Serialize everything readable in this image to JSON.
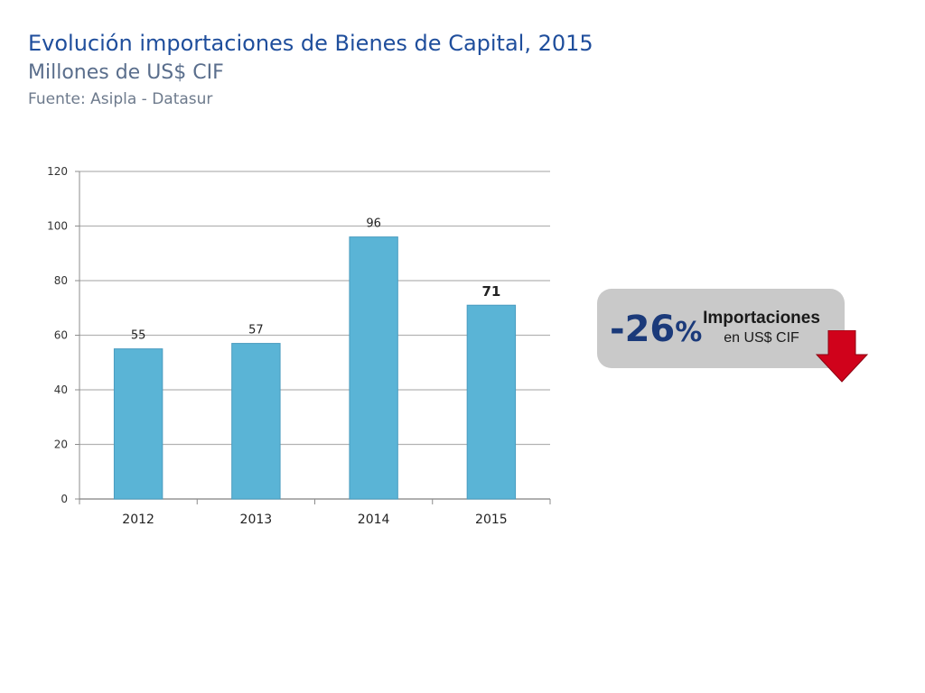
{
  "header": {
    "title": "Evolución importaciones de Bienes de Capital, 2015",
    "subtitle": "Millones de US$ CIF",
    "source": "Fuente: Asipla - Datasur"
  },
  "chart_data": {
    "type": "bar",
    "categories": [
      "2012",
      "2013",
      "2014",
      "2015"
    ],
    "values": [
      55,
      57,
      96,
      71
    ],
    "data_labels": [
      "55",
      "57",
      "96",
      "71"
    ],
    "ylim": [
      0,
      120
    ],
    "yticks": [
      0,
      20,
      40,
      60,
      80,
      100,
      120
    ],
    "title": "",
    "xlabel": "",
    "ylabel": "",
    "grid": true,
    "bar_color": "#5ab4d6"
  },
  "callout": {
    "value": "-26",
    "unit": "%",
    "title": "Importaciones",
    "subtitle": "en US$ CIF",
    "direction": "down",
    "arrow_color": "#d0021b"
  }
}
